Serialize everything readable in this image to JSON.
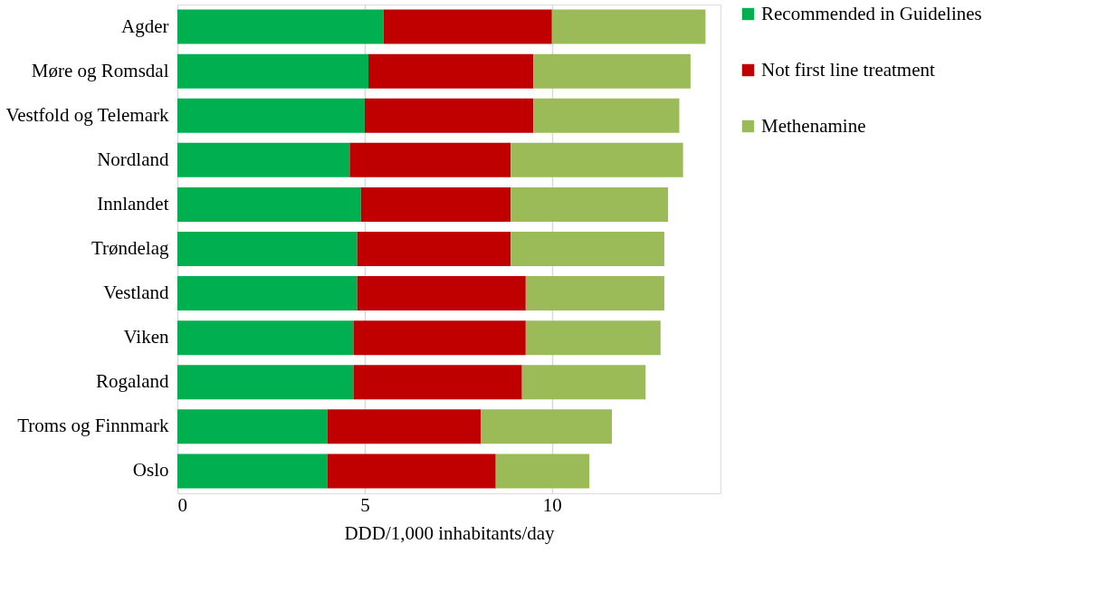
{
  "chart_data": {
    "type": "bar",
    "orientation": "horizontal",
    "stacked": true,
    "xlabel": "DDD/1,000 inhabitants/day",
    "categories": [
      "Agder",
      "Møre og Romsdal",
      "Vestfold og Telemark",
      "Nordland",
      "Innlandet",
      "Trøndelag",
      "Vestland",
      "Viken",
      "Rogaland",
      "Troms og Finnmark",
      "Oslo"
    ],
    "series": [
      {
        "name": "Recommended in Guidelines",
        "color": "#00b050",
        "values": [
          5.5,
          5.1,
          5.0,
          4.6,
          4.9,
          4.8,
          4.8,
          4.7,
          4.7,
          4.0,
          4.0
        ]
      },
      {
        "name": "Not first line treatment",
        "color": "#c00000",
        "values": [
          4.5,
          4.4,
          4.5,
          4.3,
          4.0,
          4.1,
          4.5,
          4.6,
          4.5,
          4.1,
          4.5
        ]
      },
      {
        "name": "Methenamine",
        "color": "#9bbb59",
        "values": [
          4.1,
          4.2,
          3.9,
          4.6,
          4.2,
          4.1,
          3.7,
          3.6,
          3.3,
          3.5,
          2.5
        ]
      }
    ],
    "xlim": [
      0,
      14.5
    ],
    "xticks": [
      0,
      5,
      10
    ],
    "grid": "x",
    "legend": "right"
  }
}
